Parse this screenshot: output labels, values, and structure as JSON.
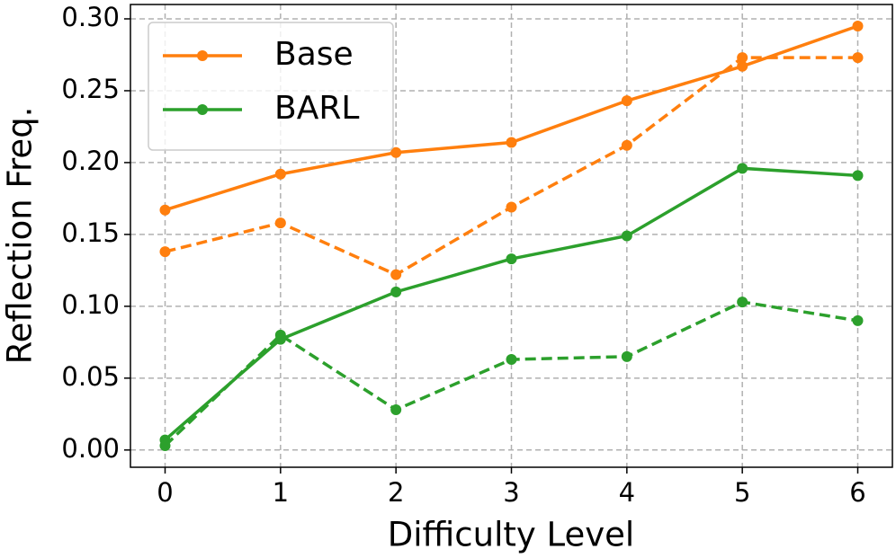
{
  "chart_data": {
    "type": "line",
    "x_label": "Difficulty Level",
    "y_label": "Reflection Freq.",
    "x": [
      0,
      1,
      2,
      3,
      4,
      5,
      6
    ],
    "series": [
      {
        "name": "Base",
        "color": "#ff7f0e",
        "style": "solid",
        "values": [
          0.167,
          0.192,
          0.207,
          0.214,
          0.243,
          0.267,
          0.295
        ]
      },
      {
        "color": "#ff7f0e",
        "style": "dashed",
        "values": [
          0.138,
          0.158,
          0.122,
          0.169,
          0.212,
          0.273,
          0.273
        ]
      },
      {
        "name": "BARL",
        "color": "#2ca02c",
        "style": "solid",
        "values": [
          0.007,
          0.077,
          0.11,
          0.133,
          0.149,
          0.196,
          0.191
        ]
      },
      {
        "color": "#2ca02c",
        "style": "dashed",
        "values": [
          0.003,
          0.08,
          0.028,
          0.063,
          0.065,
          0.103,
          0.09
        ]
      }
    ],
    "xlim": [
      -0.3,
      6.3
    ],
    "xticks": [
      0,
      1,
      2,
      3,
      4,
      5,
      6
    ],
    "ylim": [
      -0.012,
      0.31
    ],
    "yticks": [
      {
        "value": 0,
        "label": "0.00"
      },
      {
        "value": 0.05,
        "label": "0.05"
      },
      {
        "value": 0.1,
        "label": "0.10"
      },
      {
        "value": 0.15,
        "label": "0.15"
      },
      {
        "value": 0.2,
        "label": "0.20"
      },
      {
        "value": 0.25,
        "label": "0.25"
      },
      {
        "value": 0.3,
        "label": "0.30"
      }
    ],
    "grid": true,
    "legend": "upper left"
  }
}
